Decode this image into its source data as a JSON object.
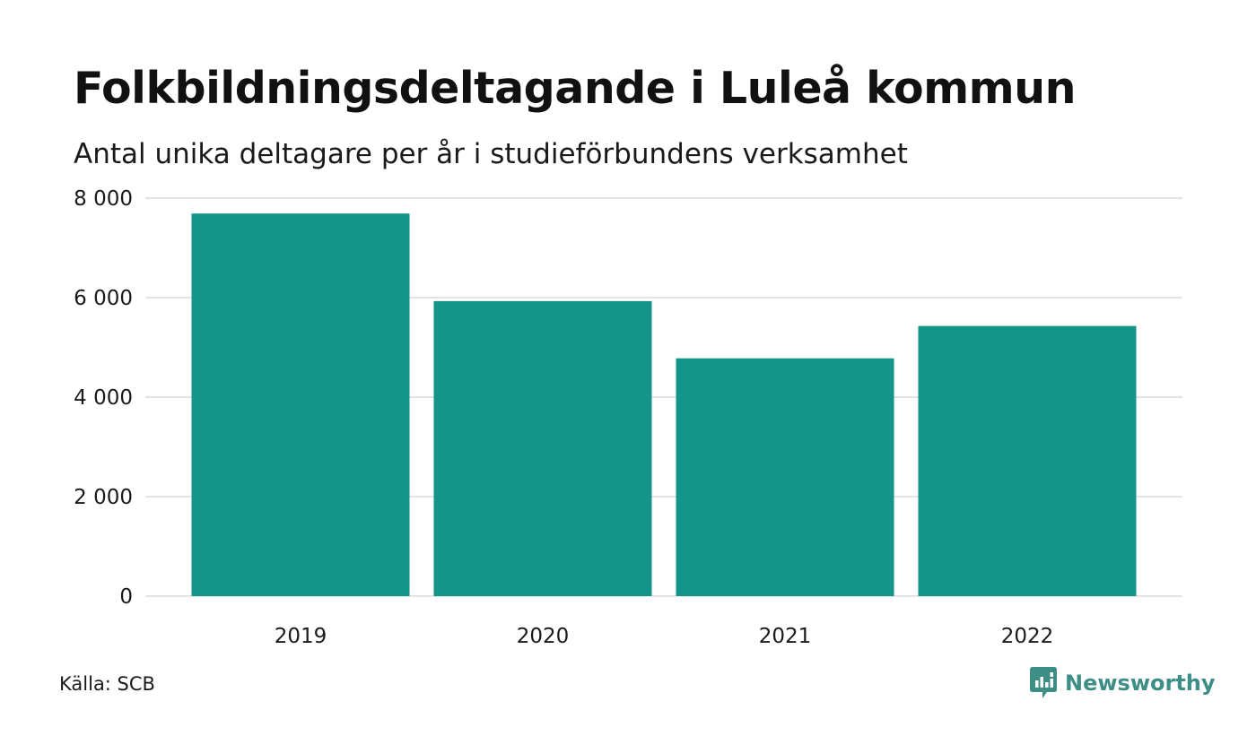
{
  "colors": {
    "bar": "#14958a",
    "grid": "#e3e3e3",
    "brand": "#3d8f86",
    "text": "#111111"
  },
  "chart_data": {
    "type": "bar",
    "title": "Folkbildningsdeltagande i Luleå kommun",
    "subtitle": "Antal unika deltagare per år i studieförbundens verksamhet",
    "xlabel": "",
    "ylabel": "",
    "categories": [
      "2019",
      "2020",
      "2021",
      "2022"
    ],
    "values": [
      7690,
      5930,
      4780,
      5430
    ],
    "ylim": [
      0,
      8000
    ],
    "yticks": [
      0,
      2000,
      4000,
      6000,
      8000
    ],
    "ytick_labels": [
      "0",
      "2 000",
      "4 000",
      "6 000",
      "8 000"
    ],
    "grid": true,
    "legend": "none"
  },
  "footer": {
    "source": "Källa: SCB",
    "brand_name": "Newsworthy",
    "brand_icon": "newsworthy-chart-bubble-icon"
  }
}
